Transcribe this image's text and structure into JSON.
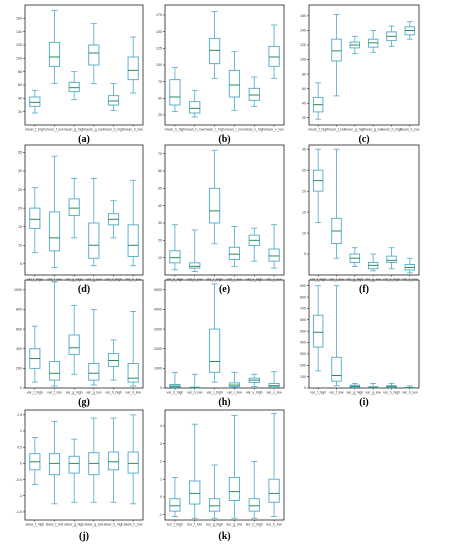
{
  "chart_data": [
    {
      "panel": "a",
      "type": "box",
      "caption": "(a)",
      "ylim": [
        0,
        180
      ],
      "yticks": [
        20,
        40,
        60,
        80,
        100,
        120,
        140,
        160
      ],
      "categories": [
        "mean_f_high",
        "mean_f_low",
        "mean_g_high",
        "mean_g_low",
        "mean_h_high",
        "mean_h_low"
      ],
      "boxes": [
        [
          18,
          28,
          34,
          42,
          52
        ],
        [
          62,
          88,
          102,
          124,
          172
        ],
        [
          38,
          50,
          56,
          64,
          80
        ],
        [
          62,
          90,
          108,
          120,
          152
        ],
        [
          22,
          30,
          36,
          44,
          62
        ],
        [
          48,
          68,
          82,
          102,
          132
        ]
      ]
    },
    {
      "panel": "b",
      "type": "box",
      "caption": "(b)",
      "ylim": [
        10,
        190
      ],
      "yticks": [
        25,
        50,
        75,
        100,
        125,
        150,
        175
      ],
      "categories": [
        "mean_h_high",
        "mean_h_low",
        "mean_r_high",
        "mean_r_low",
        "mean_v_high",
        "mean_v_low"
      ],
      "boxes": [
        [
          30,
          40,
          52,
          78,
          96
        ],
        [
          22,
          28,
          35,
          45,
          62
        ],
        [
          80,
          102,
          122,
          140,
          180
        ],
        [
          32,
          52,
          70,
          92,
          120
        ],
        [
          38,
          47,
          55,
          65,
          82
        ],
        [
          80,
          98,
          112,
          128,
          160
        ]
      ]
    },
    {
      "panel": "c",
      "type": "box",
      "caption": "(c)",
      "ylim": [
        10,
        175
      ],
      "yticks": [
        20,
        40,
        60,
        80,
        100,
        120,
        140,
        160
      ],
      "categories": [
        "mean_f_high",
        "mean_f_low",
        "mean_g_high",
        "mean_g_low",
        "mean_h_high",
        "mean_h_low"
      ],
      "boxes": [
        [
          18,
          28,
          38,
          48,
          68
        ],
        [
          50,
          98,
          112,
          128,
          162
        ],
        [
          108,
          116,
          120,
          124,
          132
        ],
        [
          110,
          117,
          123,
          128,
          140
        ],
        [
          118,
          126,
          132,
          138,
          146
        ],
        [
          128,
          134,
          140,
          145,
          152
        ]
      ]
    },
    {
      "panel": "d",
      "type": "box",
      "caption": "(d)",
      "ylim": [
        2,
        37
      ],
      "yticks": [
        5,
        10,
        15,
        20,
        25,
        30,
        35
      ],
      "categories": [
        "std_f_high",
        "std_f_low",
        "std_g_high",
        "std_g_low",
        "std_h_high",
        "std_h_low"
      ],
      "boxes": [
        [
          8,
          14.5,
          17,
          20,
          25.5
        ],
        [
          4,
          8.5,
          12,
          19,
          34
        ],
        [
          12,
          18,
          20,
          22.5,
          28
        ],
        [
          4.5,
          6.5,
          10,
          16,
          28
        ],
        [
          12,
          15.5,
          17,
          18.5,
          22
        ],
        [
          4.5,
          7,
          10,
          15.5,
          27.5
        ]
      ]
    },
    {
      "panel": "e",
      "type": "box",
      "caption": "(e)",
      "ylim": [
        0,
        75
      ],
      "yticks": [
        10,
        20,
        30,
        40,
        50,
        60,
        70
      ],
      "categories": [
        "std_h_high",
        "std_h_low",
        "std_r_high",
        "std_r_low",
        "std_v_high",
        "std_v_low"
      ],
      "boxes": [
        [
          3,
          7,
          10,
          14,
          29
        ],
        [
          2,
          4,
          5,
          7,
          26
        ],
        [
          18,
          30,
          37,
          50,
          72
        ],
        [
          5,
          9,
          12,
          16,
          28
        ],
        [
          8,
          17,
          20,
          23,
          27
        ],
        [
          4,
          8,
          11,
          15,
          29
        ]
      ]
    },
    {
      "panel": "f",
      "type": "box",
      "caption": "(f)",
      "ylim": [
        0,
        31
      ],
      "yticks": [
        5,
        10,
        15,
        20,
        25,
        30
      ],
      "categories": [
        "std_f_high",
        "std_f_low",
        "std_g_high",
        "std_g_low",
        "std_h_high",
        "std_h_low"
      ],
      "boxes": [
        [
          12.5,
          20,
          22.5,
          25,
          30
        ],
        [
          4,
          7.5,
          10.5,
          13.5,
          30
        ],
        [
          2,
          3,
          4,
          5,
          6.5
        ],
        [
          1,
          1.5,
          2.3,
          3,
          5
        ],
        [
          1.5,
          3,
          3.5,
          4.5,
          6.5
        ],
        [
          0.5,
          1.2,
          1.8,
          2.5,
          4
        ]
      ]
    },
    {
      "panel": "g",
      "type": "box",
      "caption": "(g)",
      "ylim": [
        0,
        1100
      ],
      "yticks": [
        0,
        200,
        400,
        600,
        800,
        1000
      ],
      "categories": [
        "var_f_high",
        "var_f_low",
        "var_g_high",
        "var_g_low",
        "var_h_high",
        "var_h_low"
      ],
      "boxes": [
        [
          60,
          200,
          300,
          400,
          630
        ],
        [
          20,
          80,
          150,
          270,
          1080
        ],
        [
          140,
          340,
          410,
          540,
          840
        ],
        [
          30,
          80,
          150,
          250,
          800
        ],
        [
          80,
          220,
          280,
          350,
          490
        ],
        [
          20,
          60,
          100,
          250,
          780
        ]
      ]
    },
    {
      "panel": "h",
      "type": "box",
      "caption": "(h)",
      "ylim": [
        0,
        5500
      ],
      "yticks": [
        0,
        1000,
        2000,
        3000,
        4000,
        5000
      ],
      "categories": [
        "var_h_high",
        "var_h_low",
        "var_r_high",
        "var_r_low",
        "var_v_high",
        "var_v_low"
      ],
      "boxes": [
        [
          20,
          50,
          100,
          180,
          800
        ],
        [
          5,
          15,
          20,
          40,
          700
        ],
        [
          300,
          800,
          1350,
          3000,
          5300
        ],
        [
          30,
          80,
          150,
          260,
          800
        ],
        [
          70,
          280,
          400,
          500,
          700
        ],
        [
          20,
          60,
          120,
          230,
          830
        ]
      ]
    },
    {
      "panel": "i",
      "type": "box",
      "caption": "(i)",
      "ylim": [
        0,
        950
      ],
      "yticks": [
        0,
        100,
        200,
        300,
        400,
        500,
        600,
        700,
        800,
        900
      ],
      "categories": [
        "var_f_high",
        "var_f_low",
        "var_g_high",
        "var_g_low",
        "var_h_high",
        "var_h_low"
      ],
      "boxes": [
        [
          150,
          360,
          490,
          640,
          900
        ],
        [
          20,
          60,
          110,
          270,
          900
        ],
        [
          2,
          8,
          15,
          25,
          40
        ],
        [
          1,
          3,
          5,
          10,
          40
        ],
        [
          2,
          8,
          12,
          20,
          40
        ],
        [
          0,
          1,
          3,
          5,
          18
        ]
      ]
    },
    {
      "panel": "j",
      "type": "box",
      "caption": "(j)",
      "ylim": [
        -1.75,
        1.65
      ],
      "yticks": [
        -1.5,
        -1.0,
        -0.5,
        0.0,
        0.5,
        1.0,
        1.5
      ],
      "categories": [
        "skew_f_high",
        "skew_f_low",
        "skew_g_high",
        "skew_g_low",
        "skew_h_high",
        "skew_h_low"
      ],
      "boxes": [
        [
          -0.65,
          -0.2,
          0.05,
          0.3,
          0.8
        ],
        [
          -1.25,
          -0.35,
          0.0,
          0.3,
          1.3
        ],
        [
          -1.2,
          -0.3,
          0.0,
          0.22,
          0.75
        ],
        [
          -1.2,
          -0.35,
          0.0,
          0.33,
          1.4
        ],
        [
          -1.2,
          -0.2,
          0.05,
          0.35,
          1.4
        ],
        [
          -1.25,
          -0.3,
          0.0,
          0.35,
          1.5
        ]
      ]
    },
    {
      "panel": "k",
      "type": "box",
      "caption": "(k)",
      "ylim": [
        -1.3,
        4.9
      ],
      "yticks": [
        -1,
        0,
        1,
        2,
        3,
        4
      ],
      "categories": [
        "kur_f_high",
        "kur_f_low",
        "kur_g_high",
        "kur_g_low",
        "kur_h_high",
        "kur_h_low"
      ],
      "boxes": [
        [
          -1.1,
          -0.8,
          -0.5,
          -0.1,
          1.1
        ],
        [
          -1.2,
          -0.4,
          0.2,
          0.9,
          4.1
        ],
        [
          -1.2,
          -0.8,
          -0.5,
          -0.1,
          1.8
        ],
        [
          -1.2,
          -0.2,
          0.3,
          1.1,
          4.6
        ],
        [
          -1.2,
          -0.8,
          -0.5,
          -0.1,
          2.0
        ],
        [
          -1.1,
          -0.3,
          0.2,
          1.0,
          4.7
        ]
      ]
    }
  ]
}
